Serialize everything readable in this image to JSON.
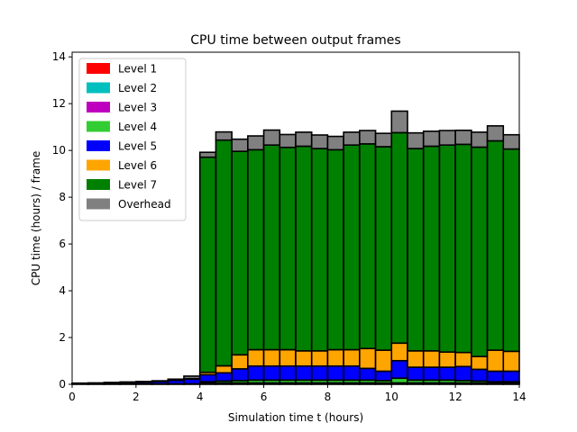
{
  "chart_data": {
    "type": "bar",
    "stacked": true,
    "title": "CPU time between output frames",
    "xlabel": "Simulation time t (hours)",
    "ylabel": "CPU time (hours) / frame",
    "xlim": [
      0,
      14
    ],
    "ylim": [
      0,
      14.2
    ],
    "xticks": [
      0,
      2,
      4,
      6,
      8,
      10,
      12,
      14
    ],
    "yticks": [
      0,
      2,
      4,
      6,
      8,
      10,
      12,
      14
    ],
    "grid": false,
    "legend_position": "top-left",
    "bin_width": 0.5,
    "x": [
      0,
      0.5,
      1,
      1.5,
      2,
      2.5,
      3,
      3.5,
      4,
      4.5,
      5,
      5.5,
      6,
      6.5,
      7,
      7.5,
      8,
      8.5,
      9,
      9.5,
      10,
      10.5,
      11,
      11.5,
      12,
      12.5,
      13,
      13.5
    ],
    "series": [
      {
        "name": "Level 1",
        "color": "#ff0000",
        "values": [
          0.02,
          0.02,
          0.02,
          0.02,
          0.02,
          0.02,
          0.02,
          0.02,
          0.02,
          0.02,
          0.02,
          0.02,
          0.02,
          0.02,
          0.02,
          0.02,
          0.02,
          0.02,
          0.02,
          0.02,
          0.02,
          0.02,
          0.02,
          0.02,
          0.02,
          0.02,
          0.02,
          0.02
        ]
      },
      {
        "name": "Level 2",
        "color": "#00bfbf",
        "values": [
          0,
          0,
          0,
          0,
          0,
          0,
          0,
          0,
          0.02,
          0.02,
          0.02,
          0.02,
          0.02,
          0.02,
          0.02,
          0.02,
          0.02,
          0.02,
          0.02,
          0.02,
          0.02,
          0.02,
          0.02,
          0.02,
          0.02,
          0.02,
          0.02,
          0.02
        ]
      },
      {
        "name": "Level 3",
        "color": "#bf00bf",
        "values": [
          0,
          0,
          0,
          0,
          0,
          0,
          0,
          0,
          0.02,
          0.02,
          0.02,
          0.02,
          0.02,
          0.02,
          0.02,
          0.02,
          0.02,
          0.02,
          0.02,
          0.02,
          0.02,
          0.02,
          0.02,
          0.02,
          0.02,
          0.02,
          0.02,
          0.02
        ]
      },
      {
        "name": "Level 4",
        "color": "#32cd32",
        "values": [
          0,
          0,
          0,
          0,
          0,
          0,
          0,
          0,
          0.05,
          0.08,
          0.1,
          0.12,
          0.12,
          0.12,
          0.12,
          0.12,
          0.12,
          0.12,
          0.12,
          0.1,
          0.2,
          0.12,
          0.12,
          0.12,
          0.1,
          0.08,
          0.05,
          0.05
        ]
      },
      {
        "name": "Level 5",
        "color": "#0000ff",
        "values": [
          0.02,
          0.03,
          0.04,
          0.05,
          0.07,
          0.1,
          0.15,
          0.2,
          0.3,
          0.35,
          0.5,
          0.6,
          0.6,
          0.6,
          0.6,
          0.6,
          0.6,
          0.6,
          0.5,
          0.4,
          0.75,
          0.55,
          0.55,
          0.55,
          0.6,
          0.5,
          0.45,
          0.45
        ]
      },
      {
        "name": "Level 6",
        "color": "#ffa500",
        "values": [
          0,
          0,
          0,
          0,
          0,
          0,
          0,
          0.02,
          0.1,
          0.3,
          0.6,
          0.7,
          0.7,
          0.7,
          0.65,
          0.65,
          0.7,
          0.7,
          0.85,
          0.9,
          0.75,
          0.7,
          0.7,
          0.65,
          0.6,
          0.55,
          0.9,
          0.85
        ]
      },
      {
        "name": "Level 7",
        "color": "#008000",
        "values": [
          0,
          0,
          0,
          0,
          0,
          0,
          0,
          0,
          9.2,
          9.65,
          8.7,
          8.55,
          8.75,
          8.65,
          8.75,
          8.65,
          8.55,
          8.75,
          8.75,
          8.7,
          9.0,
          8.65,
          8.75,
          8.85,
          8.9,
          8.95,
          8.95,
          8.65
        ]
      },
      {
        "name": "Overhead",
        "color": "#808080",
        "values": [
          0.01,
          0.01,
          0.02,
          0.03,
          0.03,
          0.03,
          0.05,
          0.11,
          0.21,
          0.35,
          0.52,
          0.59,
          0.64,
          0.55,
          0.6,
          0.58,
          0.57,
          0.55,
          0.57,
          0.57,
          0.92,
          0.67,
          0.64,
          0.62,
          0.6,
          0.64,
          0.64,
          0.61
        ]
      }
    ]
  }
}
